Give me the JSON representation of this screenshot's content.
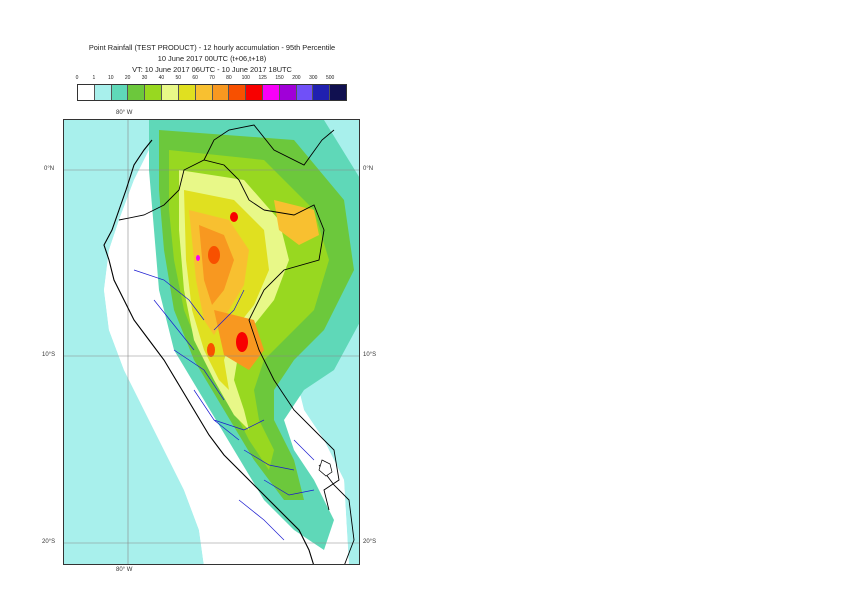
{
  "title": {
    "line1": "Point Rainfall (TEST PRODUCT) - 12 hourly accumulation - 95th Percentile",
    "line2": "10 June 2017 00UTC (t+06,t+18)",
    "line3": "VT: 10 June 2017 06UTC - 10 June 2017 18UTC"
  },
  "legend": {
    "thresholds": [
      "0",
      "1",
      "10",
      "20",
      "30",
      "40",
      "50",
      "60",
      "70",
      "80",
      "100",
      "125",
      "150",
      "200",
      "300",
      "500"
    ],
    "colors": [
      "#ffffff",
      "#a8f0ec",
      "#5fd8b8",
      "#6cc83c",
      "#98d820",
      "#e8f888",
      "#e0e020",
      "#f8c030",
      "#f89820",
      "#f85000",
      "#f80000",
      "#f800f8",
      "#a000d8",
      "#7050f8",
      "#2020b0",
      "#101050"
    ]
  },
  "map": {
    "lon_top": "80° W",
    "lon_bottom": "80° W",
    "lat_labels": {
      "lat0": "0°N",
      "lat10": "10°S",
      "lat20": "20°S"
    },
    "colors": {
      "ocean_light": "#a8f0ec",
      "coast": "#000000",
      "admin": "#1a1ad0",
      "grid": "#888888"
    }
  }
}
